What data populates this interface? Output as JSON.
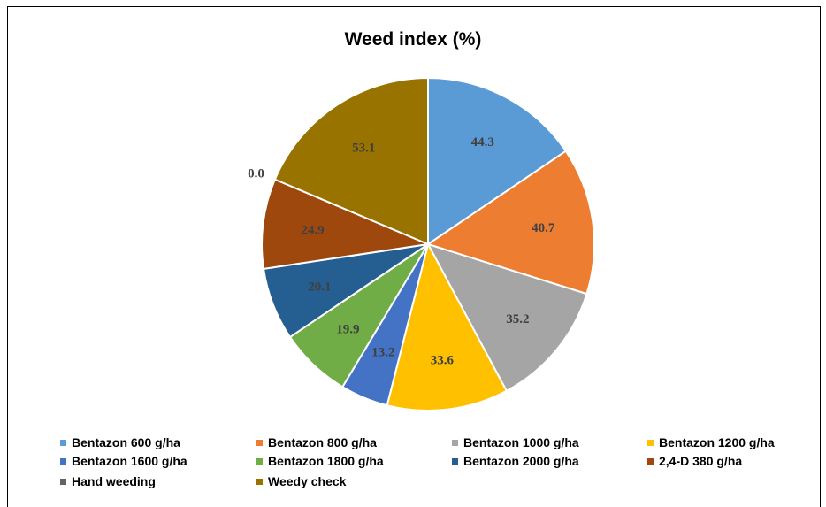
{
  "chart_data": {
    "type": "pie",
    "title": "Weed index (%)",
    "categories": [
      "Bentazon 600 g/ha",
      "Bentazon 800 g/ha",
      "Bentazon 1000 g/ha",
      "Bentazon 1200 g/ha",
      "Bentazon 1600 g/ha",
      "Bentazon 1800 g/ha",
      "Bentazon 2000 g/ha",
      "2,4-D 380 g/ha",
      "Hand weeding",
      "Weedy check"
    ],
    "values": [
      44.3,
      40.7,
      35.2,
      33.6,
      13.2,
      19.9,
      20.1,
      24.9,
      0.0,
      53.1
    ],
    "value_labels": [
      "44.3",
      "40.7",
      "35.2",
      "33.6",
      "13.2",
      "19.9",
      "20.1",
      "24.9",
      "0.0",
      "53.1"
    ],
    "colors": [
      "#5B9BD5",
      "#ED7D31",
      "#A5A5A5",
      "#FFC000",
      "#4472C4",
      "#70AD47",
      "#255E91",
      "#9E480E",
      "#636363",
      "#997300"
    ],
    "legend_position": "bottom"
  }
}
